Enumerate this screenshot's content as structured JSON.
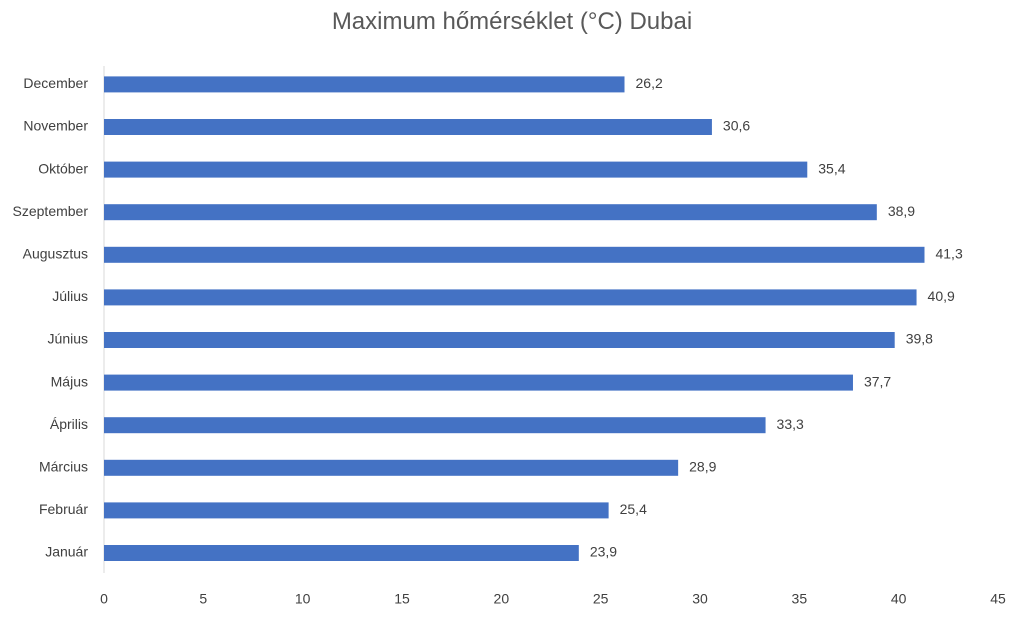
{
  "chart_data": {
    "type": "bar",
    "orientation": "horizontal",
    "title": "Maximum hőmérséklet (°C) Dubai",
    "xlabel": "",
    "ylabel": "",
    "categories": [
      "Január",
      "Február",
      "Március",
      "Április",
      "Május",
      "Június",
      "Július",
      "Augusztus",
      "Szeptember",
      "Október",
      "November",
      "December"
    ],
    "values": [
      23.9,
      25.4,
      28.9,
      33.3,
      37.7,
      39.8,
      40.9,
      41.3,
      38.9,
      35.4,
      30.6,
      26.2
    ],
    "value_labels": [
      "23,9",
      "25,4",
      "28,9",
      "33,3",
      "37,7",
      "39,8",
      "40,9",
      "41,3",
      "38,9",
      "35,4",
      "30,6",
      "26,2"
    ],
    "xlim": [
      0,
      45
    ],
    "xticks": [
      0,
      5,
      10,
      15,
      20,
      25,
      30,
      35,
      40,
      45
    ],
    "grid": false,
    "legend": "none",
    "bar_color": "#4472C4",
    "text_color": "#404040"
  }
}
